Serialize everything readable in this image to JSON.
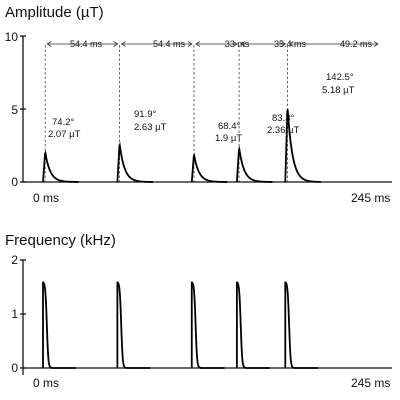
{
  "chart_data": [
    {
      "type": "line",
      "title": "Amplitude (µT)",
      "ylim": [
        0,
        10
      ],
      "yticks": [
        "0",
        "5",
        "10"
      ],
      "xlim": [
        0,
        245
      ],
      "xtick_labels": [
        "0 ms",
        "245 ms"
      ],
      "pulse_times_ms": [
        0,
        54.4,
        108.8,
        141.8,
        177.2
      ],
      "peaks": [
        2.07,
        2.63,
        1.9,
        2.36,
        5.18
      ],
      "interval_labels": [
        "54.4 ms",
        "54.4 ms",
        "33 ms",
        "35.4 ms",
        "49.2 ms"
      ],
      "annotations": [
        {
          "angle": "74.2°",
          "amp": "2.07 µT"
        },
        {
          "angle": "91.9°",
          "amp": "2.63 µT"
        },
        {
          "angle": "68.4°",
          "amp": "1.9 µT"
        },
        {
          "angle": "83.3°",
          "amp": "2.36 µT"
        },
        {
          "angle": "142.5°",
          "amp": "5.18 µT"
        }
      ]
    },
    {
      "type": "line",
      "title": "Frequency (kHz)",
      "ylim": [
        0,
        2
      ],
      "yticks": [
        "0",
        "1",
        "2"
      ],
      "xlim": [
        0,
        245
      ],
      "xtick_labels": [
        "0 ms",
        "245 ms"
      ],
      "pulse_times_ms": [
        0,
        54.4,
        108.8,
        141.8,
        177.2
      ],
      "start_value": 1.6
    }
  ]
}
